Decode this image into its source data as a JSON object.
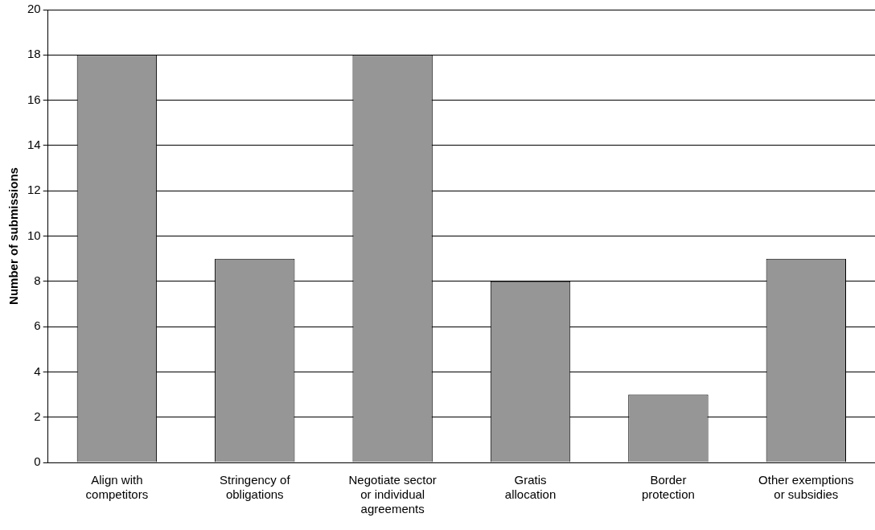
{
  "chart_data": {
    "type": "bar",
    "ylabel": "Number of submissions",
    "categories": [
      "Align with competitors",
      "Stringency of obligations",
      "Negotiate sector or individual agreements",
      "Gratis allocation",
      "Border protection",
      "Other exemptions or subsidies"
    ],
    "values": [
      18,
      9,
      18,
      8,
      3,
      9
    ],
    "color": "#969696",
    "ylim": [
      0,
      20
    ],
    "yticks": [
      0,
      2,
      4,
      6,
      8,
      10,
      12,
      14,
      16,
      18,
      20
    ],
    "grid": "y"
  }
}
